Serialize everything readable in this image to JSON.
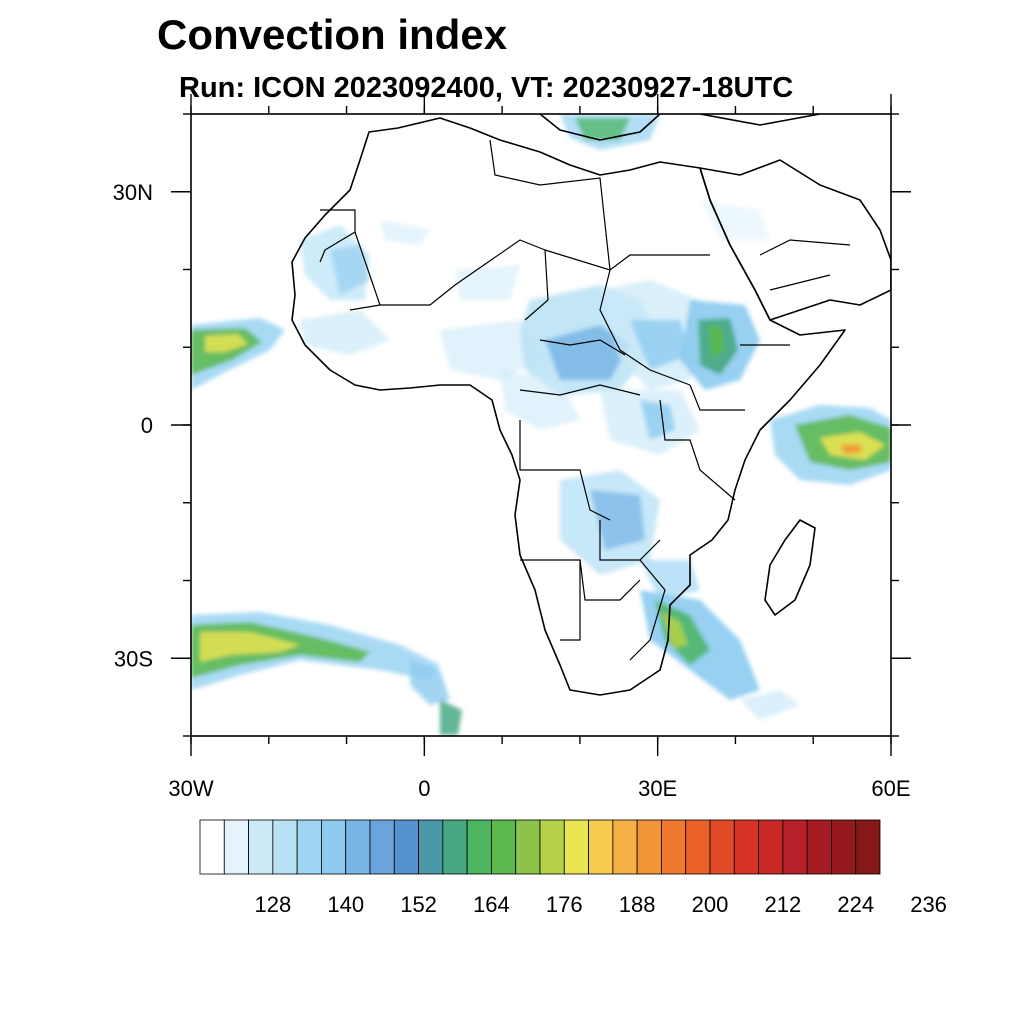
{
  "title": "Convection index",
  "subtitle": "Run: ICON 2023092400,  VT: 20230927-18UTC",
  "map": {
    "region": "Africa",
    "extent": {
      "lon_min": -30,
      "lon_max": 60,
      "lat_min": -40,
      "lat_max": 40
    },
    "lat_ticks": [
      {
        "value": 30,
        "label": "30N"
      },
      {
        "value": 0,
        "label": "0"
      },
      {
        "value": -30,
        "label": "30S"
      }
    ],
    "lon_ticks": [
      {
        "value": -30,
        "label": "30W"
      },
      {
        "value": 0,
        "label": "0"
      },
      {
        "value": 30,
        "label": "30E"
      },
      {
        "value": 60,
        "label": "60E"
      }
    ]
  },
  "colorbar": {
    "colors": [
      "#ffffff",
      "#e6f5fc",
      "#cce9f8",
      "#b9e2f6",
      "#a0d6f3",
      "#8ccbef",
      "#7ab5e6",
      "#6ba3dd",
      "#5592cf",
      "#4a98a8",
      "#48a882",
      "#4bb562",
      "#5ab94a",
      "#8cc34a",
      "#b5d24a",
      "#e9e452",
      "#f6cc4f",
      "#f5b143",
      "#f39538",
      "#ef7a2e",
      "#ea6228",
      "#e04a27",
      "#d83126",
      "#c82826",
      "#b8202a",
      "#a61b22",
      "#961a1d",
      "#861818"
    ],
    "labels": [
      "128",
      "140",
      "152",
      "164",
      "176",
      "188",
      "200",
      "212",
      "224",
      "236"
    ]
  }
}
